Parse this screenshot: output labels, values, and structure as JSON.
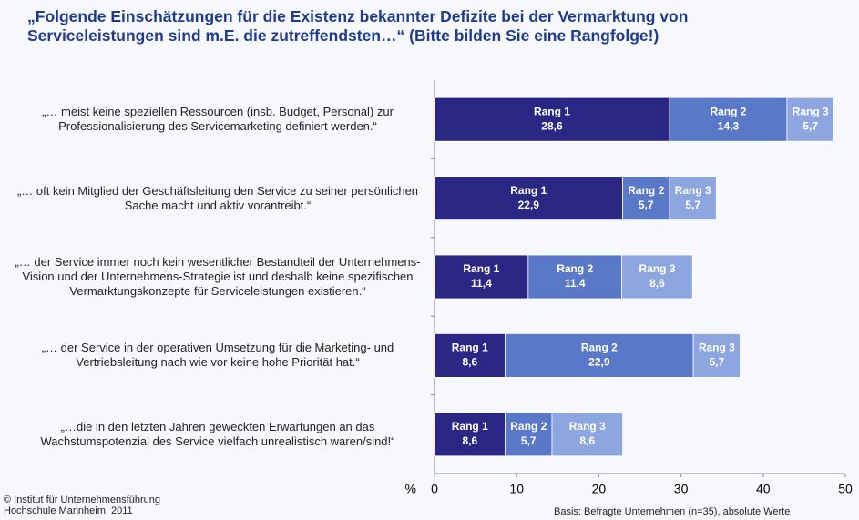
{
  "chart_data": {
    "type": "stacked_bar_horizontal",
    "title": "„Folgende Einschätzungen für die Existenz bekannter Defizite bei der Vermarktung von Serviceleistungen sind m.E. die zutreffendsten…“ (Bitte bilden Sie eine Rangfolge!)",
    "categories": [
      "„… meist keine speziellen Ressourcen (insb. Budget, Personal) zur Professionalisierung des Servicemarketing definiert werden.“",
      "„… oft kein Mitglied der Geschäftsleitung den Service zu seiner persönlichen Sache macht und aktiv vorantreibt.“",
      "„… der Service immer noch kein wesentlicher Bestandteil der Unternehmens-Vision und der Unternehmens-Strategie ist und deshalb keine spezifischen Vermarktungskonzepte für Serviceleistungen existieren.“",
      "„… der Service in der operativen Umsetzung für die Marketing- und Vertriebsleitung nach wie vor keine hohe Priorität hat.“",
      "„…die in den letzten Jahren geweckten Erwartungen an das Wachstumspotenzial des Service vielfach unrealistisch waren/sind!“"
    ],
    "series": [
      {
        "name": "Rang 1",
        "color": "#2b2785",
        "values": [
          28.6,
          22.9,
          11.4,
          8.6,
          8.6
        ],
        "value_labels": [
          "28,6",
          "22,9",
          "11,4",
          "8,6",
          "8,6"
        ]
      },
      {
        "name": "Rang 2",
        "color": "#5a78c8",
        "values": [
          14.3,
          5.7,
          11.4,
          22.9,
          5.7
        ],
        "value_labels": [
          "14,3",
          "5,7",
          "11,4",
          "22,9",
          "5,7"
        ]
      },
      {
        "name": "Rang 3",
        "color": "#8ea6df",
        "values": [
          5.7,
          5.7,
          8.6,
          5.7,
          8.6
        ],
        "value_labels": [
          "5,7",
          "5,7",
          "8,6",
          "5,7",
          "8,6"
        ]
      }
    ],
    "x_label": "%",
    "xlim": [
      0,
      50
    ],
    "xticks": [
      0,
      10,
      20,
      30,
      40,
      50
    ],
    "grid": false,
    "footer_left": [
      "© Institut für Unternehmensführung",
      "Hochschule Mannheim, 2011"
    ],
    "footer_right": "Basis: Befragte Unternehmen (n=35), absolute Werte"
  }
}
